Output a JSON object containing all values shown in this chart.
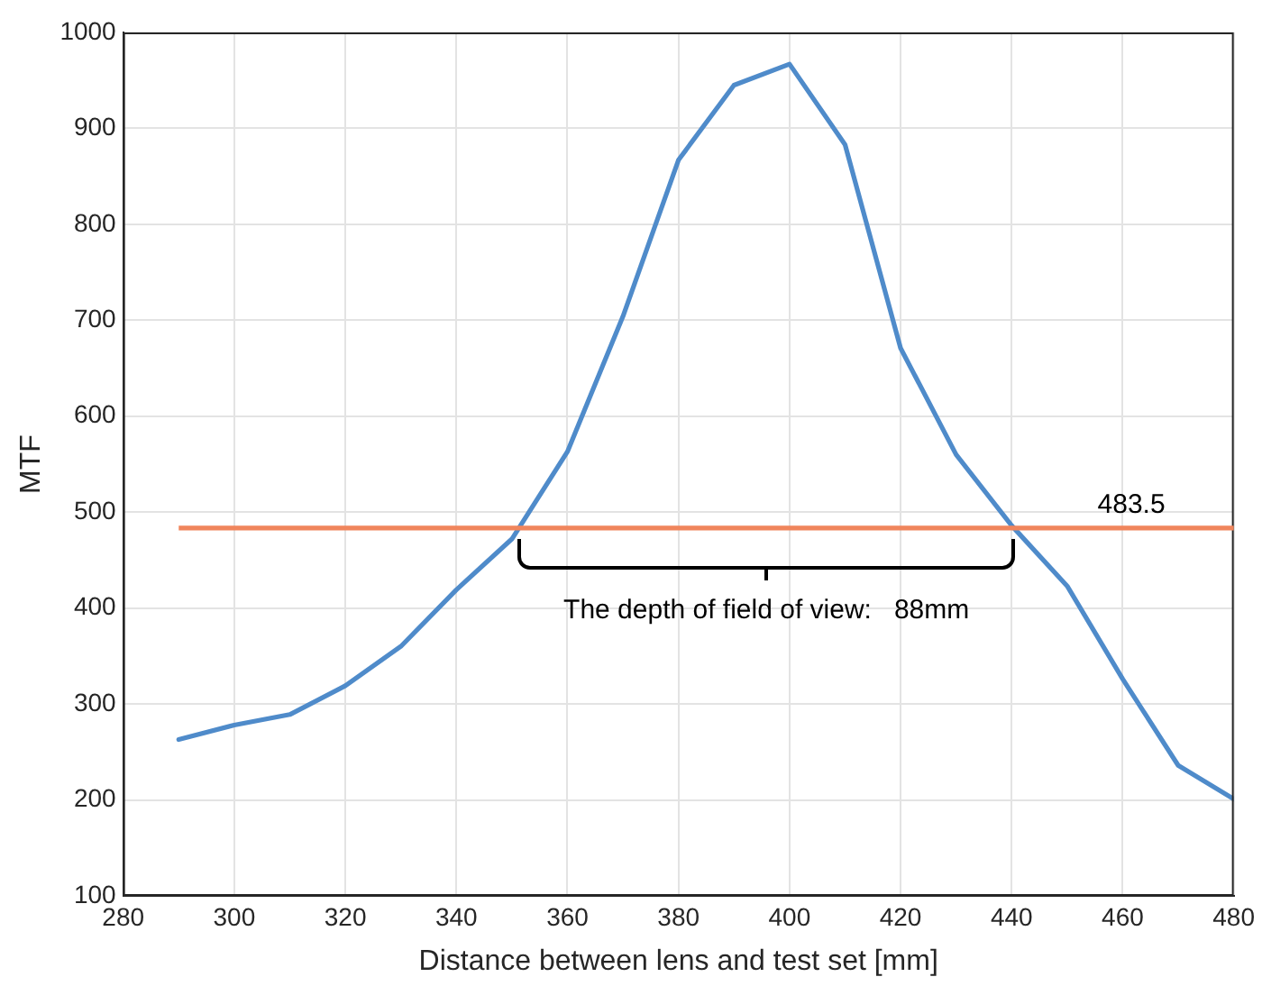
{
  "chart_data": {
    "type": "line",
    "xlabel": "Distance between lens and test set [mm]",
    "ylabel": "MTF",
    "x": [
      290,
      300,
      310,
      320,
      330,
      340,
      350,
      360,
      370,
      380,
      390,
      400,
      410,
      420,
      430,
      440,
      450,
      460,
      470,
      480
    ],
    "series": [
      {
        "color": "#4f8bca",
        "values": [
          263,
          278,
          289,
          319,
          360,
          419,
          472,
          563,
          704,
          867,
          945,
          967,
          883,
          671,
          560,
          486,
          423,
          326,
          236,
          201
        ]
      }
    ],
    "xlim": [
      280,
      480
    ],
    "xticks": [
      280,
      300,
      320,
      340,
      360,
      380,
      400,
      420,
      440,
      460,
      480
    ],
    "ylim": [
      100,
      1000
    ],
    "yticks": [
      100,
      200,
      300,
      400,
      500,
      600,
      700,
      800,
      900,
      1000
    ],
    "ref_lines": [
      {
        "axis": "y",
        "value": 483.5,
        "label": "483.5",
        "color": "#f0855c"
      }
    ],
    "annotations": [
      "The depth of field of view:   88mm"
    ],
    "grid": true,
    "legend": false,
    "marker": "none",
    "line_style": "solid"
  }
}
